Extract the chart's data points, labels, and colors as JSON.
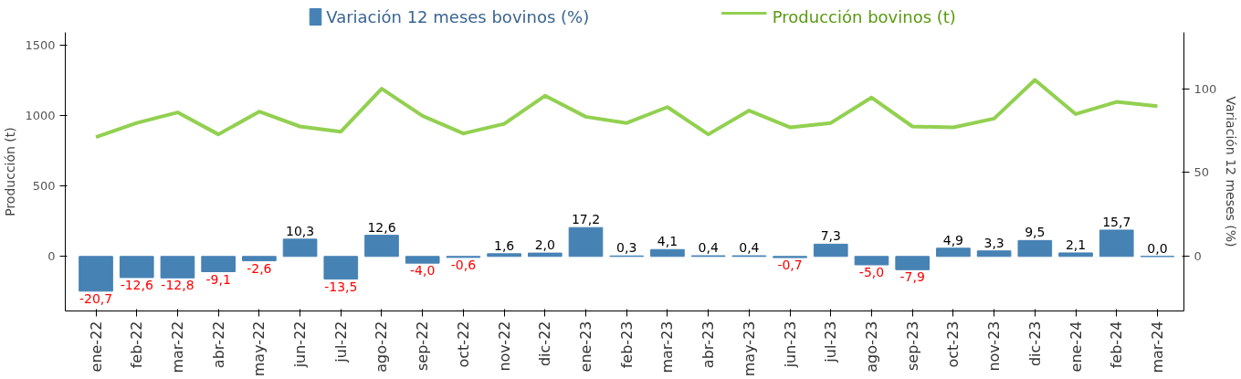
{
  "chart_data": {
    "type": "bar",
    "xlabel": null,
    "ylabel": "Producción (t)",
    "y2label": "Variación 12 meses (%)",
    "categories": [
      "ene-22",
      "feb-22",
      "mar-22",
      "abr-22",
      "may-22",
      "jun-22",
      "jul-22",
      "ago-22",
      "sep-22",
      "oct-22",
      "nov-22",
      "dic-22",
      "ene-23",
      "feb-23",
      "mar-23",
      "abr-23",
      "may-23",
      "jun-23",
      "jul-23",
      "ago-23",
      "sep-23",
      "oct-23",
      "nov-23",
      "dic-23",
      "ene-24",
      "feb-24",
      "mar-24"
    ],
    "series": [
      {
        "name": "Variación 12 meses bovinos (%)",
        "type": "bar",
        "axis": "y2",
        "color": "#4682b4",
        "values": [
          -20.7,
          -12.6,
          -12.8,
          -9.1,
          -2.6,
          10.3,
          -13.5,
          12.6,
          -4.0,
          -0.6,
          1.6,
          2.0,
          17.2,
          0.3,
          4.1,
          0.4,
          0.4,
          -0.7,
          7.3,
          -5.0,
          -7.9,
          4.9,
          3.3,
          9.5,
          2.1,
          15.7,
          0.0
        ],
        "value_labels": [
          "-20,7",
          "-12,6",
          "-12,8",
          "-9,1",
          "-2,6",
          "10,3",
          "-13,5",
          "12,6",
          "-4,0",
          "-0,6",
          "1,6",
          "2,0",
          "17,2",
          "0,3",
          "4,1",
          "0,4",
          "0,4",
          "-0,7",
          "7,3",
          "-5,0",
          "-7,9",
          "4,9",
          "3,3",
          "9,5",
          "2,1",
          "15,7",
          "0,0"
        ]
      },
      {
        "name": "Producción bovinos (t)",
        "type": "line",
        "color": "#92d050",
        "values": [
          850,
          950,
          1025,
          869,
          1031,
          925,
          888,
          1194,
          1000,
          875,
          944,
          1144,
          994,
          950,
          1063,
          869,
          1038,
          919,
          950,
          1131,
          925,
          919,
          981,
          1256,
          1013,
          1100,
          1069
        ]
      }
    ],
    "ylim": [
      -387,
      1594
    ],
    "yticks": [
      0,
      500,
      1000,
      1500
    ],
    "y2lim": [
      -32.5,
      133.5
    ],
    "y2ticks": [
      0,
      50,
      100
    ],
    "legend": "top",
    "grid": false
  }
}
